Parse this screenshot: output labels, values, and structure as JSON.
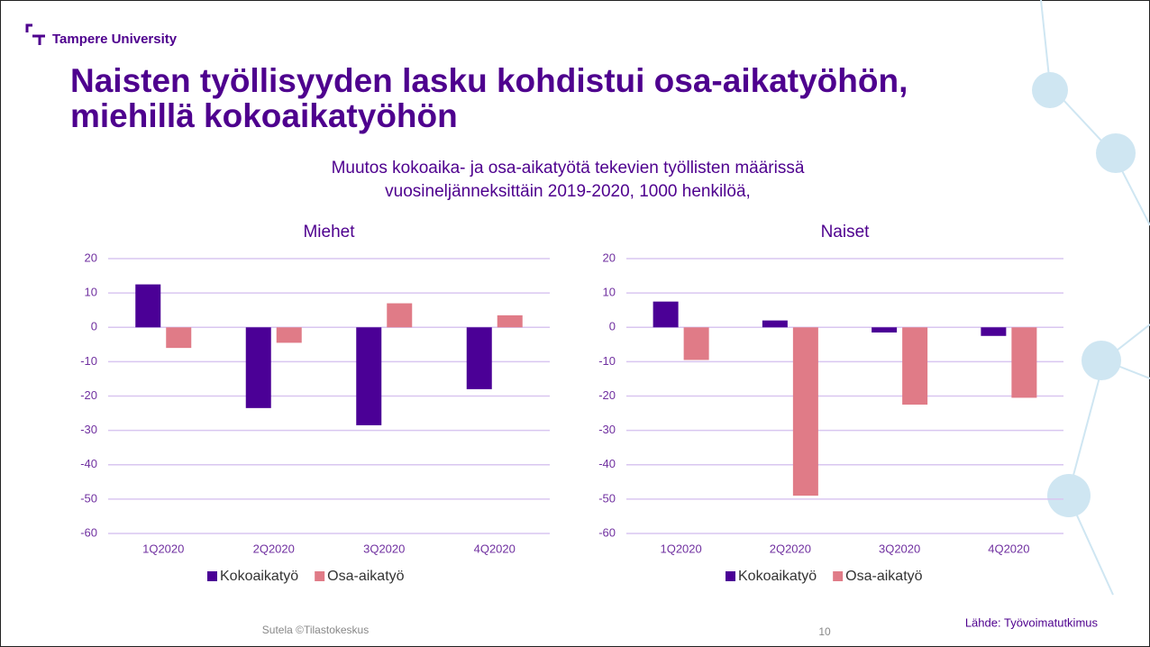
{
  "logo": "Tampere University",
  "title": [
    "Naisten työllisyyden lasku kohdistui osa-aikatyöhön,",
    "miehillä kokoaikatyöhön"
  ],
  "subtitle": [
    "Muutos kokoaika- ja osa-aikatyötä tekevien työllisten määrissä",
    "vuosineljänneksittäin 2019-2020, 1000 henkilöä,"
  ],
  "footer": {
    "author": "Sutela ©Tilastokeskus",
    "page": 10,
    "source": "Lähde: Työvoimatutkimus"
  },
  "chart_data": [
    {
      "type": "bar",
      "title": "Miehet",
      "categories": [
        "1Q2020",
        "2Q2020",
        "3Q2020",
        "4Q2020"
      ],
      "series": [
        {
          "name": "Kokoaikatyö",
          "color": "#4b0096",
          "values": [
            12.5,
            -23.5,
            -28.5,
            -18
          ]
        },
        {
          "name": "Osa-aikatyö",
          "color": "#e07b87",
          "values": [
            -6,
            -4.5,
            7,
            3.5
          ]
        }
      ],
      "ylim": [
        -60,
        20
      ],
      "yticks": [
        -60,
        -50,
        -40,
        -30,
        -20,
        -10,
        0,
        10,
        20
      ],
      "grid": true,
      "legend": "bottom"
    },
    {
      "type": "bar",
      "title": "Naiset",
      "categories": [
        "1Q2020",
        "2Q2020",
        "3Q2020",
        "4Q2020"
      ],
      "series": [
        {
          "name": "Kokoaikatyö",
          "color": "#4b0096",
          "values": [
            7.5,
            2,
            -1.5,
            -2.5
          ]
        },
        {
          "name": "Osa-aikatyö",
          "color": "#e07b87",
          "values": [
            -9.5,
            -49,
            -22.5,
            -20.5
          ]
        }
      ],
      "ylim": [
        -60,
        20
      ],
      "yticks": [
        -60,
        -50,
        -40,
        -30,
        -20,
        -10,
        0,
        10,
        20
      ],
      "grid": true,
      "legend": "bottom"
    }
  ]
}
